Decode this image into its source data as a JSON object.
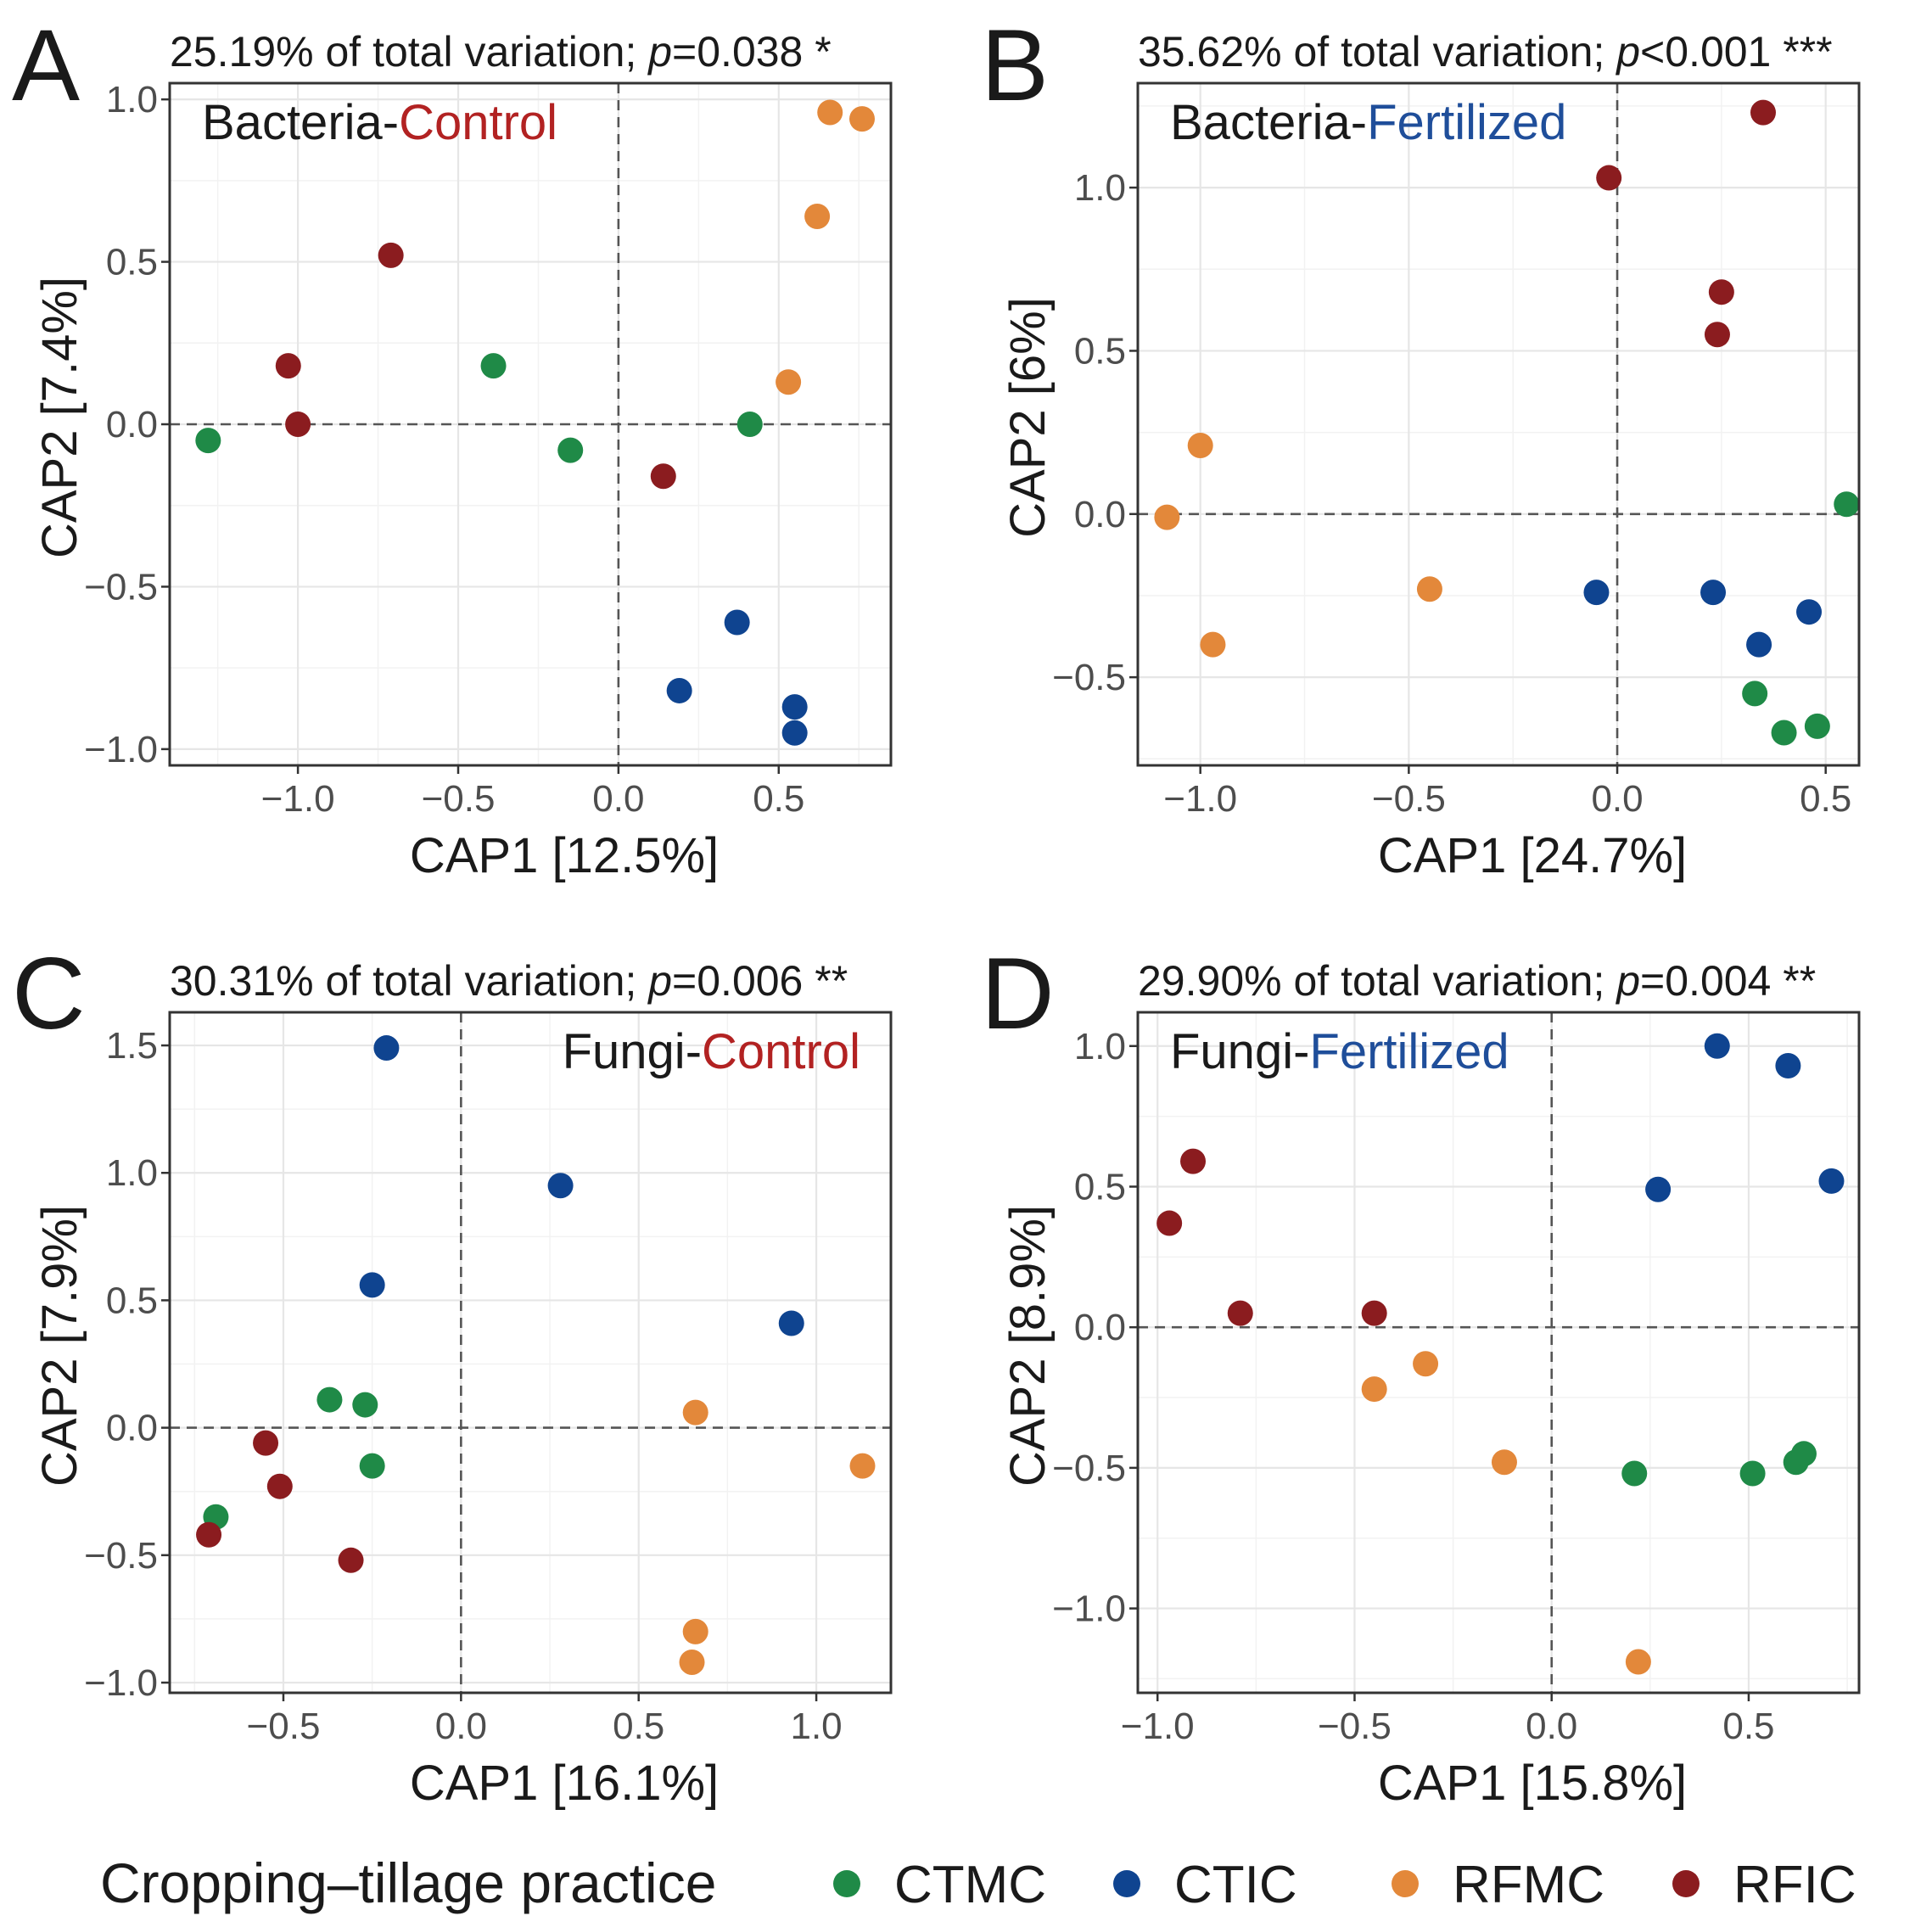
{
  "colors": {
    "CTMC": "#1f8a47",
    "CTIC": "#0f4490",
    "RFMC": "#e3883a",
    "RFIC": "#8b1c1f",
    "control_red": "#b22222",
    "fertilized_blue": "#1f4e9a"
  },
  "legend": {
    "title": "Cropping–tillage practice",
    "items": [
      {
        "key": "CTMC",
        "label": "CTMC"
      },
      {
        "key": "CTIC",
        "label": "CTIC"
      },
      {
        "key": "RFMC",
        "label": "RFMC"
      },
      {
        "key": "RFIC",
        "label": "RFIC"
      }
    ]
  },
  "chart_data": [
    {
      "type": "scatter",
      "panel": "A",
      "subtitle": {
        "pre": "25.19% of total variation; ",
        "p": "p",
        "post": "=0.038 *"
      },
      "inset": {
        "prefix": "Bacteria-",
        "treatment": "Control",
        "treatment_color": "control_red",
        "position": "top-left"
      },
      "xlabel": "CAP1   [12.5%]",
      "ylabel": "CAP2   [7.4%]",
      "xlim": [
        -1.4,
        0.85
      ],
      "ylim": [
        -1.05,
        1.05
      ],
      "xticks": [
        -1.0,
        -0.5,
        0.0,
        0.5
      ],
      "xtick_labels": [
        "−1.0",
        "−0.5",
        "0.0",
        "0.5"
      ],
      "yticks": [
        -1.0,
        -0.5,
        0.0,
        0.5,
        1.0
      ],
      "ytick_labels": [
        "−1.0",
        "−0.5",
        "0.0",
        "0.5",
        "1.0"
      ],
      "series": [
        {
          "name": "CTMC",
          "points": [
            [
              -1.28,
              -0.05
            ],
            [
              -0.39,
              0.18
            ],
            [
              -0.15,
              -0.08
            ],
            [
              0.41,
              0.0
            ]
          ]
        },
        {
          "name": "CTIC",
          "points": [
            [
              0.19,
              -0.82
            ],
            [
              0.37,
              -0.61
            ],
            [
              0.55,
              -0.87
            ],
            [
              0.55,
              -0.95
            ]
          ]
        },
        {
          "name": "RFMC",
          "points": [
            [
              0.66,
              0.96
            ],
            [
              0.76,
              0.94
            ],
            [
              0.62,
              0.64
            ],
            [
              0.53,
              0.13
            ]
          ]
        },
        {
          "name": "RFIC",
          "points": [
            [
              -0.71,
              0.52
            ],
            [
              -1.03,
              0.18
            ],
            [
              -1.0,
              0.0
            ],
            [
              0.14,
              -0.16
            ]
          ]
        }
      ]
    },
    {
      "type": "scatter",
      "panel": "B",
      "subtitle": {
        "pre": "35.62% of total variation; ",
        "p": "p",
        "post": "<0.001 ***"
      },
      "inset": {
        "prefix": "Bacteria-",
        "treatment": "Fertilized",
        "treatment_color": "fertilized_blue",
        "position": "top-left"
      },
      "xlabel": "CAP1   [24.7%]",
      "ylabel": "CAP2   [6%]",
      "xlim": [
        -1.15,
        0.58
      ],
      "ylim": [
        -0.77,
        1.32
      ],
      "xticks": [
        -1.0,
        -0.5,
        0.0,
        0.5
      ],
      "xtick_labels": [
        "−1.0",
        "−0.5",
        "0.0",
        "0.5"
      ],
      "yticks": [
        -0.5,
        0.0,
        0.5,
        1.0
      ],
      "ytick_labels": [
        "−0.5",
        "0.0",
        "0.5",
        "1.0"
      ],
      "series": [
        {
          "name": "CTMC",
          "points": [
            [
              0.55,
              0.03
            ],
            [
              0.33,
              -0.55
            ],
            [
              0.4,
              -0.67
            ],
            [
              0.48,
              -0.65
            ]
          ]
        },
        {
          "name": "CTIC",
          "points": [
            [
              -0.05,
              -0.24
            ],
            [
              0.23,
              -0.24
            ],
            [
              0.34,
              -0.4
            ],
            [
              0.46,
              -0.3
            ]
          ]
        },
        {
          "name": "RFMC",
          "points": [
            [
              -1.0,
              0.21
            ],
            [
              -1.08,
              -0.01
            ],
            [
              -0.97,
              -0.4
            ],
            [
              -0.45,
              -0.23
            ]
          ]
        },
        {
          "name": "RFIC",
          "points": [
            [
              -0.02,
              1.03
            ],
            [
              0.35,
              1.23
            ],
            [
              0.25,
              0.68
            ],
            [
              0.24,
              0.55
            ]
          ]
        }
      ]
    },
    {
      "type": "scatter",
      "panel": "C",
      "subtitle": {
        "pre": "30.31% of total variation; ",
        "p": "p",
        "post": "=0.006 **"
      },
      "inset": {
        "prefix": "Fungi-",
        "treatment": "Control",
        "treatment_color": "control_red",
        "position": "top-right"
      },
      "xlabel": "CAP1   [16.1%]",
      "ylabel": "CAP2   [7.9%]",
      "xlim": [
        -0.82,
        1.21
      ],
      "ylim": [
        -1.04,
        1.63
      ],
      "xticks": [
        -0.5,
        0.0,
        0.5,
        1.0
      ],
      "xtick_labels": [
        "−0.5",
        "0.0",
        "0.5",
        "1.0"
      ],
      "yticks": [
        -1.0,
        -0.5,
        0.0,
        0.5,
        1.0,
        1.5
      ],
      "ytick_labels": [
        "−1.0",
        "−0.5",
        "0.0",
        "0.5",
        "1.0",
        "1.5"
      ],
      "series": [
        {
          "name": "CTMC",
          "points": [
            [
              -0.37,
              0.11
            ],
            [
              -0.27,
              0.09
            ],
            [
              -0.25,
              -0.15
            ],
            [
              -0.69,
              -0.35
            ]
          ]
        },
        {
          "name": "CTIC",
          "points": [
            [
              -0.21,
              1.49
            ],
            [
              0.28,
              0.95
            ],
            [
              -0.25,
              0.56
            ],
            [
              0.93,
              0.41
            ]
          ]
        },
        {
          "name": "RFMC",
          "points": [
            [
              0.66,
              0.06
            ],
            [
              1.13,
              -0.15
            ],
            [
              0.66,
              -0.8
            ],
            [
              0.65,
              -0.92
            ]
          ]
        },
        {
          "name": "RFIC",
          "points": [
            [
              -0.55,
              -0.06
            ],
            [
              -0.51,
              -0.23
            ],
            [
              -0.71,
              -0.42
            ],
            [
              -0.31,
              -0.52
            ]
          ]
        }
      ]
    },
    {
      "type": "scatter",
      "panel": "D",
      "subtitle": {
        "pre": "29.90% of total variation; ",
        "p": "p",
        "post": "=0.004 **"
      },
      "inset": {
        "prefix": "Fungi-",
        "treatment": "Fertilized",
        "treatment_color": "fertilized_blue",
        "position": "top-left"
      },
      "xlabel": "CAP1   [15.8%]",
      "ylabel": "CAP2   [8.9%]",
      "xlim": [
        -1.05,
        0.78
      ],
      "ylim": [
        -1.3,
        1.12
      ],
      "xticks": [
        -1.0,
        -0.5,
        0.0,
        0.5
      ],
      "xtick_labels": [
        "−1.0",
        "−0.5",
        "0.0",
        "0.5"
      ],
      "yticks": [
        -1.0,
        -0.5,
        0.0,
        0.5,
        1.0
      ],
      "ytick_labels": [
        "−1.0",
        "−0.5",
        "0.0",
        "0.5",
        "1.0"
      ],
      "series": [
        {
          "name": "CTMC",
          "points": [
            [
              0.21,
              -0.52
            ],
            [
              0.51,
              -0.52
            ],
            [
              0.62,
              -0.48
            ],
            [
              0.64,
              -0.45
            ]
          ]
        },
        {
          "name": "CTIC",
          "points": [
            [
              0.42,
              1.0
            ],
            [
              0.6,
              0.93
            ],
            [
              0.27,
              0.49
            ],
            [
              0.71,
              0.52
            ]
          ]
        },
        {
          "name": "RFMC",
          "points": [
            [
              -0.45,
              -0.22
            ],
            [
              -0.32,
              -0.13
            ],
            [
              -0.12,
              -0.48
            ],
            [
              0.22,
              -1.19
            ]
          ]
        },
        {
          "name": "RFIC",
          "points": [
            [
              -0.91,
              0.59
            ],
            [
              -0.97,
              0.37
            ],
            [
              -0.79,
              0.05
            ],
            [
              -0.45,
              0.05
            ]
          ]
        }
      ]
    }
  ]
}
